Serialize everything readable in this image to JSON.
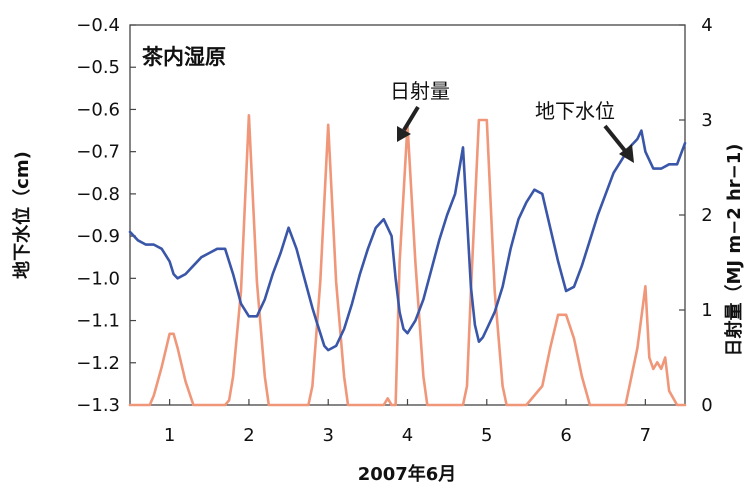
{
  "chart_data": {
    "type": "line",
    "title": "茶内湿原",
    "xlabel": "2007年6月",
    "ylabel_left": "地下水位（cm)",
    "ylabel_right": "日射量（MJ m−2 hr−1)",
    "xlim": [
      0.5,
      7.5
    ],
    "ylim_left": [
      -1.3,
      -0.4
    ],
    "ylim_right": [
      0,
      4
    ],
    "x_ticks": [
      "1",
      "2",
      "3",
      "4",
      "5",
      "6",
      "7"
    ],
    "y_left_ticks": [
      "−0.4",
      "−0.5",
      "−0.6",
      "−0.7",
      "−0.8",
      "−0.9",
      "−1.0",
      "−1.1",
      "−1.2",
      "−1.3"
    ],
    "y_right_ticks": [
      "4",
      "3",
      "2",
      "1",
      "0"
    ],
    "grid": false,
    "annotations": [
      "日射量",
      "地下水位"
    ],
    "colors": {
      "groundwater": "#3a56a8",
      "radiation": "#f0977a"
    },
    "series": [
      {
        "axis": "left",
        "x": [
          0.5,
          0.6,
          0.7,
          0.8,
          0.9,
          1.0,
          1.05,
          1.1,
          1.2,
          1.3,
          1.4,
          1.5,
          1.6,
          1.7,
          1.8,
          1.9,
          2.0,
          2.1,
          2.2,
          2.3,
          2.4,
          2.5,
          2.6,
          2.7,
          2.8,
          2.85,
          2.9,
          2.95,
          3.0,
          3.1,
          3.2,
          3.3,
          3.4,
          3.5,
          3.6,
          3.7,
          3.8,
          3.85,
          3.9,
          3.95,
          4.0,
          4.1,
          4.2,
          4.3,
          4.4,
          4.5,
          4.6,
          4.7,
          4.8,
          4.85,
          4.9,
          4.95,
          5.0,
          5.1,
          5.2,
          5.3,
          5.4,
          5.5,
          5.6,
          5.7,
          5.8,
          5.9,
          6.0,
          6.1,
          6.2,
          6.3,
          6.4,
          6.5,
          6.6,
          6.7,
          6.8,
          6.9,
          6.95,
          7.0,
          7.1,
          7.2,
          7.3,
          7.4,
          7.5
        ],
        "y": [
          -0.89,
          -0.91,
          -0.92,
          -0.92,
          -0.93,
          -0.96,
          -0.99,
          -1.0,
          -0.99,
          -0.97,
          -0.95,
          -0.94,
          -0.93,
          -0.93,
          -0.99,
          -1.06,
          -1.09,
          -1.09,
          -1.05,
          -0.99,
          -0.94,
          -0.88,
          -0.93,
          -1.0,
          -1.07,
          -1.1,
          -1.13,
          -1.16,
          -1.17,
          -1.16,
          -1.12,
          -1.06,
          -0.99,
          -0.93,
          -0.88,
          -0.86,
          -0.9,
          -1.0,
          -1.08,
          -1.12,
          -1.13,
          -1.1,
          -1.05,
          -0.98,
          -0.91,
          -0.85,
          -0.8,
          -0.69,
          -1.02,
          -1.11,
          -1.15,
          -1.14,
          -1.12,
          -1.08,
          -1.02,
          -0.93,
          -0.86,
          -0.82,
          -0.79,
          -0.8,
          -0.88,
          -0.96,
          -1.03,
          -1.02,
          -0.97,
          -0.91,
          -0.85,
          -0.8,
          -0.75,
          -0.72,
          -0.69,
          -0.67,
          -0.65,
          -0.7,
          -0.74,
          -0.74,
          -0.73,
          -0.73,
          -0.68
        ]
      },
      {
        "axis": "right",
        "x": [
          0.5,
          0.75,
          0.8,
          0.9,
          1.0,
          1.05,
          1.1,
          1.2,
          1.3,
          1.5,
          1.7,
          1.75,
          1.8,
          1.9,
          2.0,
          2.1,
          2.2,
          2.25,
          2.5,
          2.75,
          2.8,
          2.9,
          3.0,
          3.1,
          3.2,
          3.25,
          3.5,
          3.7,
          3.75,
          3.8,
          3.85,
          3.9,
          4.0,
          4.1,
          4.2,
          4.25,
          4.5,
          4.7,
          4.75,
          4.8,
          4.9,
          5.0,
          5.1,
          5.2,
          5.25,
          5.5,
          5.7,
          5.8,
          5.9,
          6.0,
          6.1,
          6.2,
          6.3,
          6.5,
          6.75,
          6.8,
          6.9,
          7.0,
          7.05,
          7.1,
          7.15,
          7.2,
          7.25,
          7.3,
          7.4,
          7.5
        ],
        "y": [
          0,
          0,
          0.1,
          0.4,
          0.75,
          0.75,
          0.6,
          0.25,
          0,
          0,
          0,
          0.05,
          0.3,
          1.2,
          3.05,
          1.3,
          0.3,
          0,
          0,
          0,
          0.2,
          1.3,
          2.95,
          1.3,
          0.3,
          0,
          0,
          0,
          0.07,
          0,
          0,
          1.5,
          2.95,
          1.5,
          0.3,
          0,
          0,
          0,
          0.2,
          1.2,
          3.0,
          3.0,
          1.2,
          0.2,
          0,
          0,
          0.2,
          0.6,
          0.95,
          0.95,
          0.7,
          0.3,
          0,
          0,
          0,
          0.2,
          0.6,
          1.25,
          0.5,
          0.38,
          0.45,
          0.38,
          0.5,
          0.15,
          0,
          0
        ]
      }
    ]
  }
}
